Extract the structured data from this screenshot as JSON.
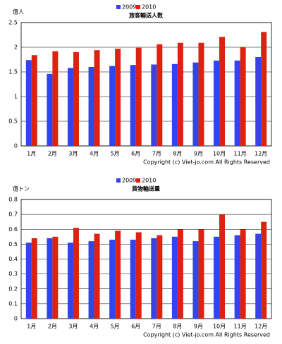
{
  "chart_data": [
    {
      "type": "bar",
      "title": "旅客輸送人数",
      "y_label": "億人",
      "categories": [
        "1月",
        "2月",
        "3月",
        "4月",
        "5月",
        "6月",
        "7月",
        "8月",
        "9月",
        "10月",
        "11月",
        "12月"
      ],
      "series": [
        {
          "name": "2009",
          "color": "#3344ee",
          "values": [
            1.74,
            1.46,
            1.58,
            1.6,
            1.62,
            1.64,
            1.65,
            1.66,
            1.69,
            1.73,
            1.73,
            1.8
          ]
        },
        {
          "name": "2010",
          "color": "#dd2211",
          "values": [
            1.84,
            1.92,
            1.9,
            1.94,
            1.97,
            1.99,
            2.06,
            2.09,
            2.09,
            2.21,
            2.0,
            2.31
          ]
        }
      ],
      "ylim": [
        0,
        2.5
      ],
      "yticks": [
        0,
        0.5,
        1,
        1.5,
        2,
        2.5
      ],
      "grid": true,
      "annotation": "Copyright (c) Viet-jo.com All Rights Reserved"
    },
    {
      "type": "bar",
      "title": "貨物輸送量",
      "y_label": "億トン",
      "categories": [
        "1月",
        "2月",
        "3月",
        "4月",
        "5月",
        "6月",
        "7月",
        "8月",
        "9月",
        "10月",
        "11月",
        "12月"
      ],
      "series": [
        {
          "name": "2009",
          "color": "#3344ee",
          "values": [
            0.51,
            0.54,
            0.51,
            0.52,
            0.53,
            0.53,
            0.54,
            0.55,
            0.52,
            0.55,
            0.56,
            0.57
          ]
        },
        {
          "name": "2010",
          "color": "#dd2211",
          "values": [
            0.54,
            0.55,
            0.61,
            0.57,
            0.59,
            0.58,
            0.56,
            0.6,
            0.6,
            0.7,
            0.6,
            0.65
          ]
        }
      ],
      "ylim": [
        0,
        0.8
      ],
      "yticks": [
        0,
        0.1,
        0.2,
        0.3,
        0.4,
        0.5,
        0.6,
        0.7,
        0.8
      ],
      "grid": true,
      "annotation": "Copyright (c) Viet-jo.com All Rights Reserved"
    }
  ]
}
